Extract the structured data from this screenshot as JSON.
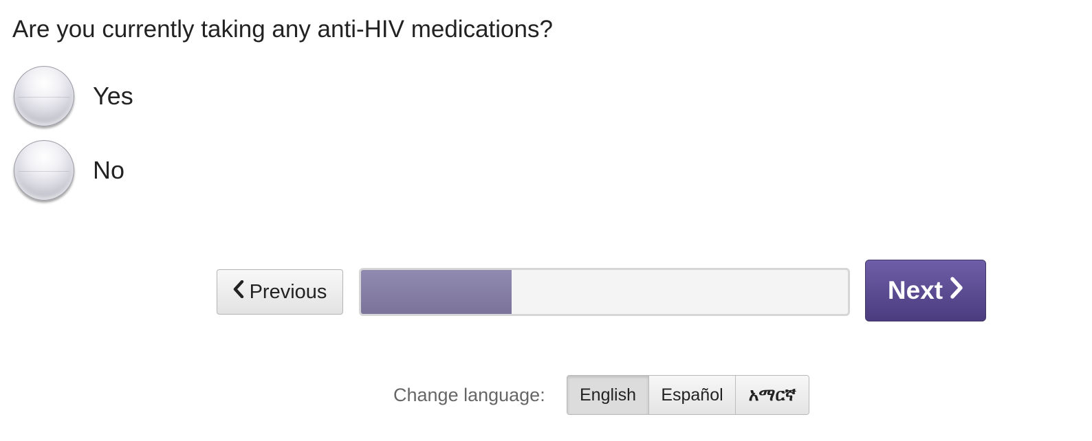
{
  "question": {
    "text": "Are you currently taking any anti-HIV medications?"
  },
  "options": [
    {
      "label": "Yes",
      "selected": false
    },
    {
      "label": "No",
      "selected": false
    }
  ],
  "navigation": {
    "previous_label": "Previous",
    "previous_icon": "chevron-left-icon",
    "next_label": "Next",
    "next_icon": "chevron-right-icon",
    "progress_fraction": 0.31
  },
  "language": {
    "label": "Change language:",
    "options": [
      "English",
      "Español",
      "አማርኛ"
    ],
    "selected": "English"
  },
  "colors": {
    "accent": "#5a4b8e",
    "progress_fill": "#857ea3"
  }
}
